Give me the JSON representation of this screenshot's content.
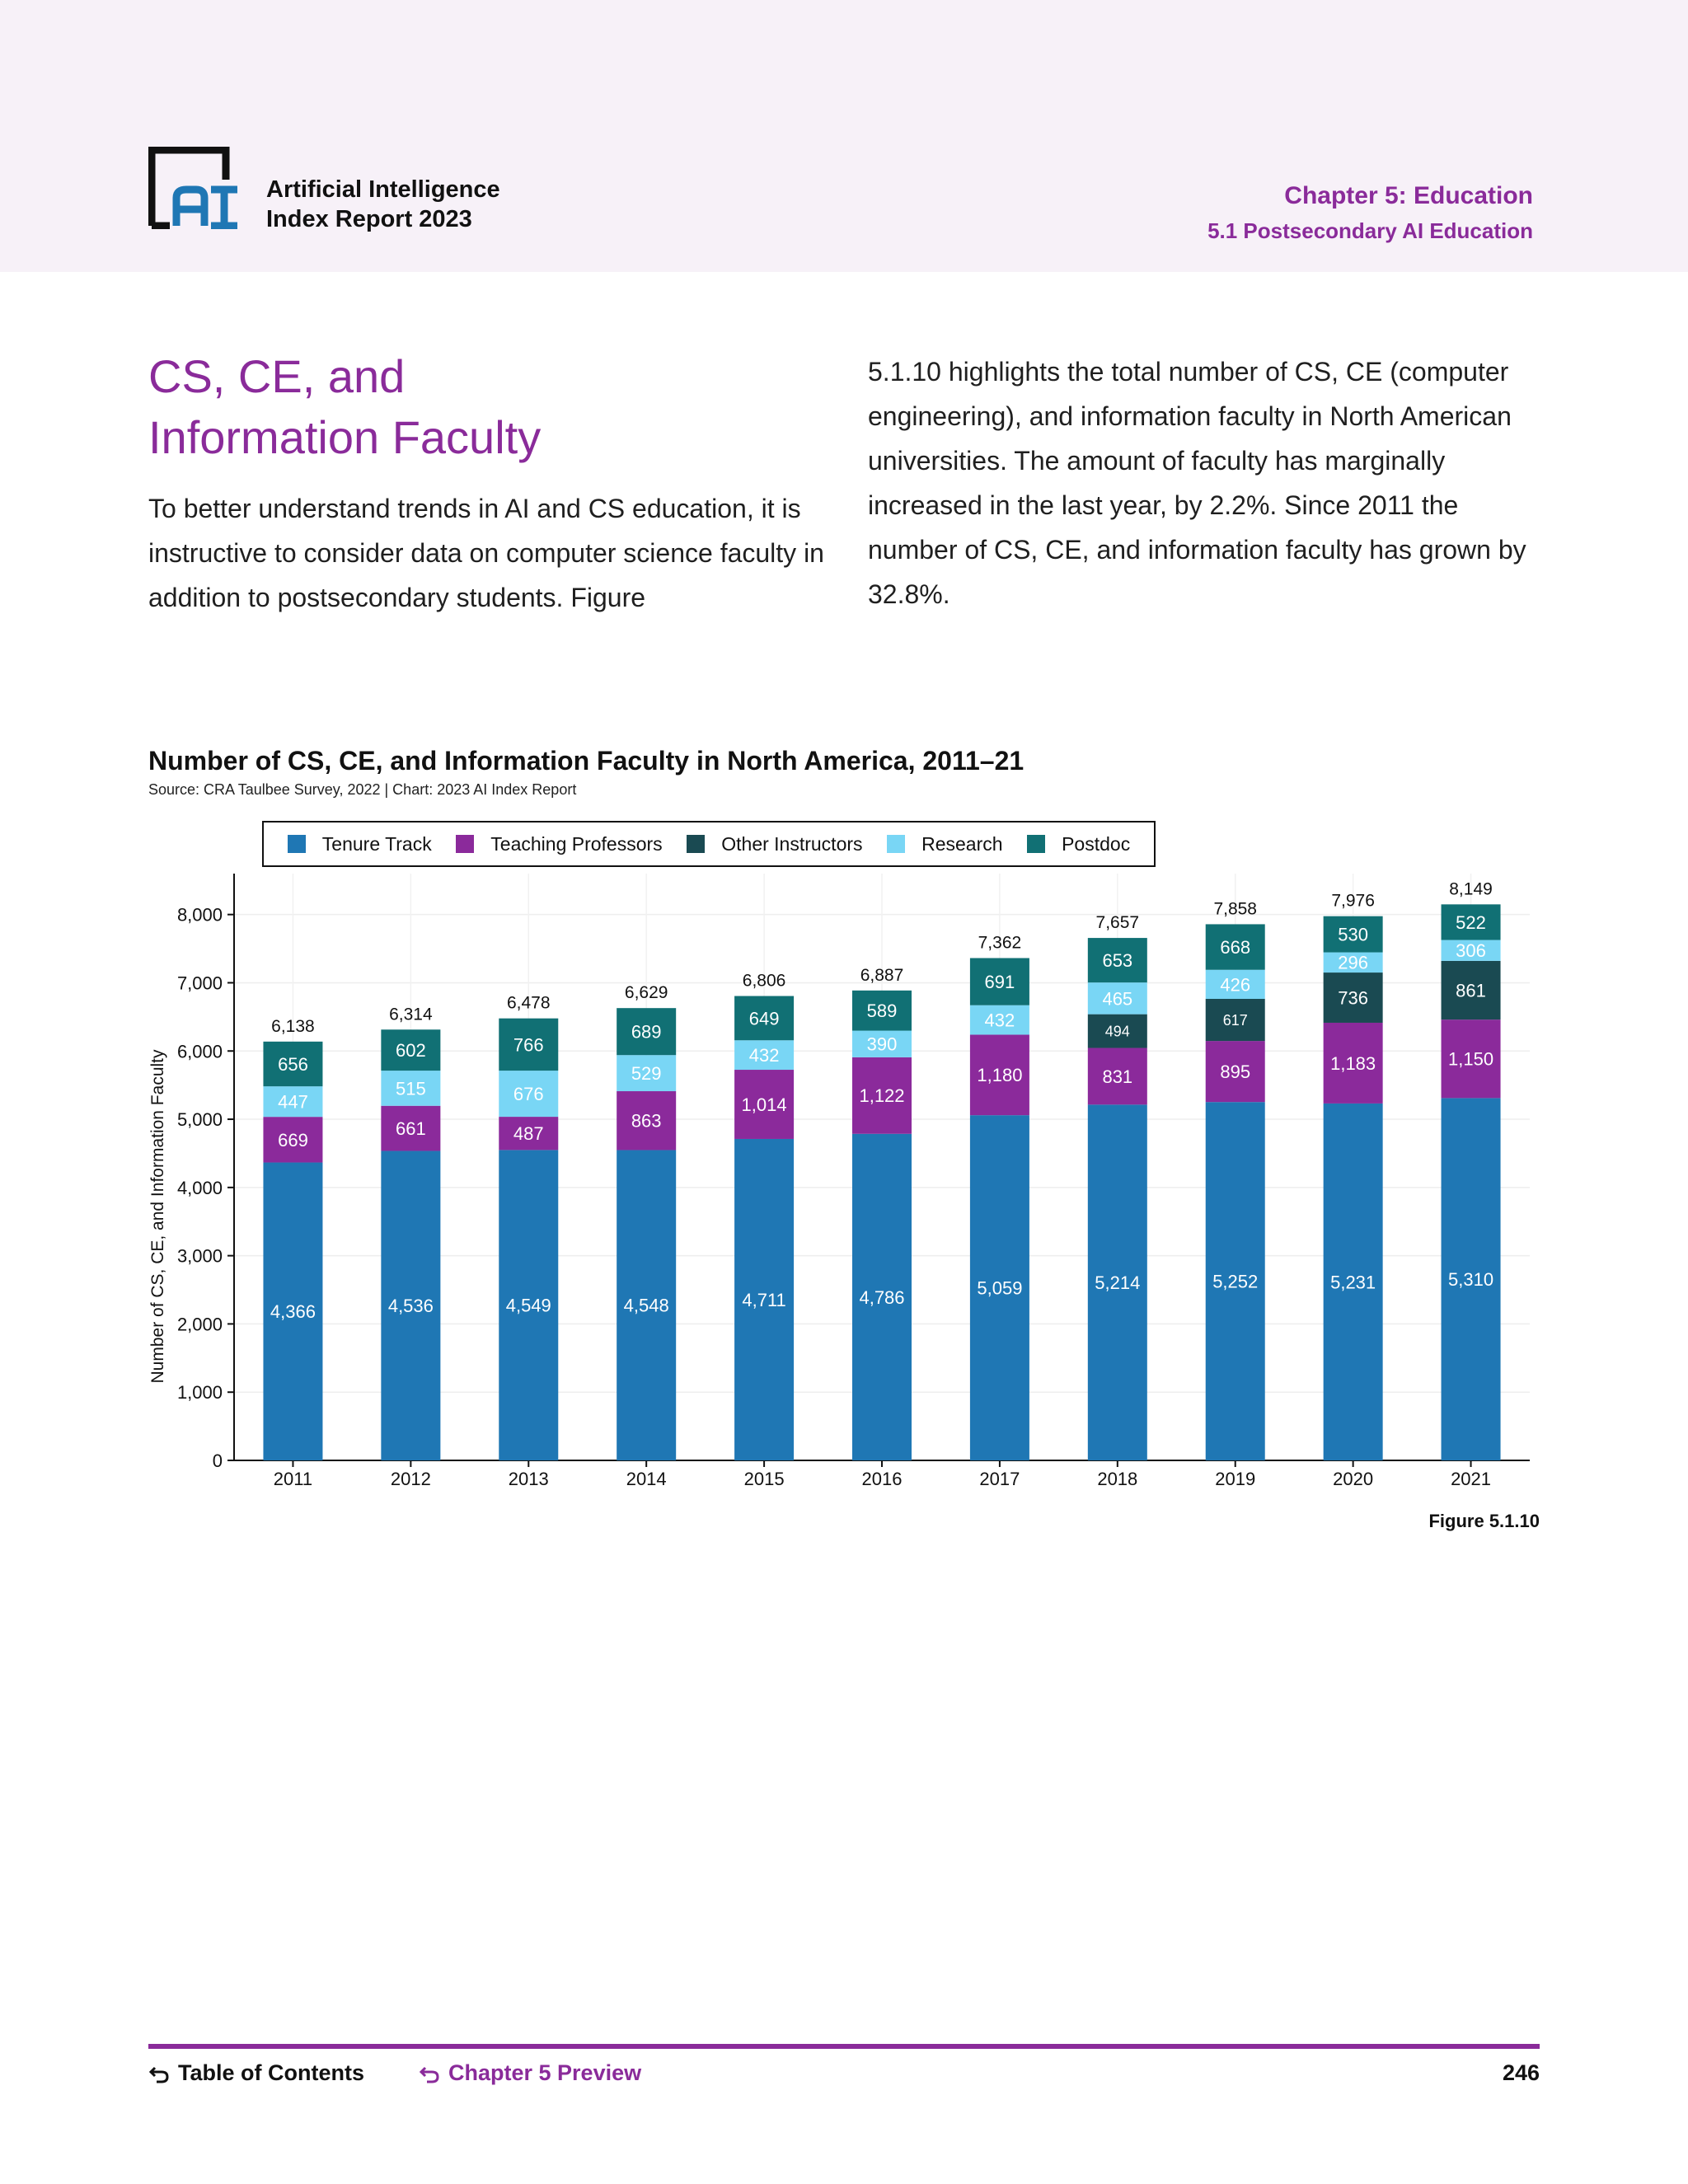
{
  "header": {
    "brand_line1": "Artificial Intelligence",
    "brand_line2": "Index Report 2023",
    "chapter": "Chapter 5: Education",
    "section": "5.1 Postsecondary AI Education"
  },
  "main": {
    "title_line1": "CS, CE, and",
    "title_line2": "Information Faculty",
    "lead_left": "To better understand trends in AI and CS education, it is instructive to consider data on computer science faculty in addition to postsecondary students. Figure",
    "lead_right": "5.1.10 highlights the total number of CS, CE (computer engineering), and information faculty in North American universities. The amount of faculty has marginally increased in the last year, by 2.2%. Since 2011 the number of CS, CE, and information faculty has grown by 32.8%."
  },
  "chart_data": {
    "type": "bar",
    "stacked": true,
    "title": "Number of CS, CE, and Information Faculty in North America, 2011–21",
    "source": "Source: CRA Taulbee Survey, 2022 | Chart: 2023 AI Index Report",
    "ylabel": "Number of CS, CE, and Information Faculty",
    "xlabel": "",
    "ylim": [
      0,
      8600
    ],
    "yticks": [
      0,
      1000,
      2000,
      3000,
      4000,
      5000,
      6000,
      7000,
      8000
    ],
    "ytick_labels": [
      "0",
      "1,000",
      "2,000",
      "3,000",
      "4,000",
      "5,000",
      "6,000",
      "7,000",
      "8,000"
    ],
    "grid": true,
    "legend_position": "top",
    "categories": [
      "2011",
      "2012",
      "2013",
      "2014",
      "2015",
      "2016",
      "2017",
      "2018",
      "2019",
      "2020",
      "2021"
    ],
    "series": [
      {
        "name": "Tenure Track",
        "color": "#1f77b4",
        "values": [
          4366,
          4536,
          4549,
          4548,
          4711,
          4786,
          5059,
          5214,
          5252,
          5231,
          5310
        ],
        "labels": [
          "4,366",
          "4,536",
          "4,549",
          "4,548",
          "4,711",
          "4,786",
          "5,059",
          "5,214",
          "5,252",
          "5,231",
          "5,310"
        ]
      },
      {
        "name": "Teaching Professors",
        "color": "#8b2a9b",
        "values": [
          669,
          661,
          487,
          863,
          1014,
          1122,
          1180,
          831,
          895,
          1183,
          1150
        ],
        "labels": [
          "669",
          "661",
          "487",
          "863",
          "1,014",
          "1,122",
          "1,180",
          "831",
          "895",
          "1,183",
          "1,150"
        ]
      },
      {
        "name": "Other Instructors",
        "color": "#1a4a52",
        "values": [
          0,
          0,
          0,
          0,
          0,
          0,
          0,
          494,
          617,
          736,
          861
        ],
        "labels": [
          "",
          "",
          "",
          "",
          "",
          "",
          "",
          "494",
          "617",
          "736",
          "861"
        ]
      },
      {
        "name": "Research",
        "color": "#79d6f5",
        "values": [
          447,
          515,
          676,
          529,
          432,
          390,
          432,
          465,
          426,
          296,
          306
        ],
        "labels": [
          "447",
          "515",
          "676",
          "529",
          "432",
          "390",
          "432",
          "465",
          "426",
          "296",
          "306"
        ]
      },
      {
        "name": "Postdoc",
        "color": "#117074",
        "values": [
          656,
          602,
          766,
          689,
          649,
          589,
          691,
          653,
          668,
          530,
          522
        ],
        "labels": [
          "656",
          "602",
          "766",
          "689",
          "649",
          "589",
          "691",
          "653",
          "668",
          "530",
          "522"
        ]
      }
    ],
    "totals": [
      6138,
      6314,
      6478,
      6629,
      6806,
      6887,
      7362,
      7657,
      7858,
      7976,
      8149
    ],
    "total_labels": [
      "6,138",
      "6,314",
      "6,478",
      "6,629",
      "6,806",
      "6,887",
      "7,362",
      "7,657",
      "7,858",
      "7,976",
      "8,149"
    ],
    "figure_label": "Figure 5.1.10"
  },
  "footer": {
    "toc": "Table of Contents",
    "preview": "Chapter 5 Preview",
    "page": "246"
  }
}
